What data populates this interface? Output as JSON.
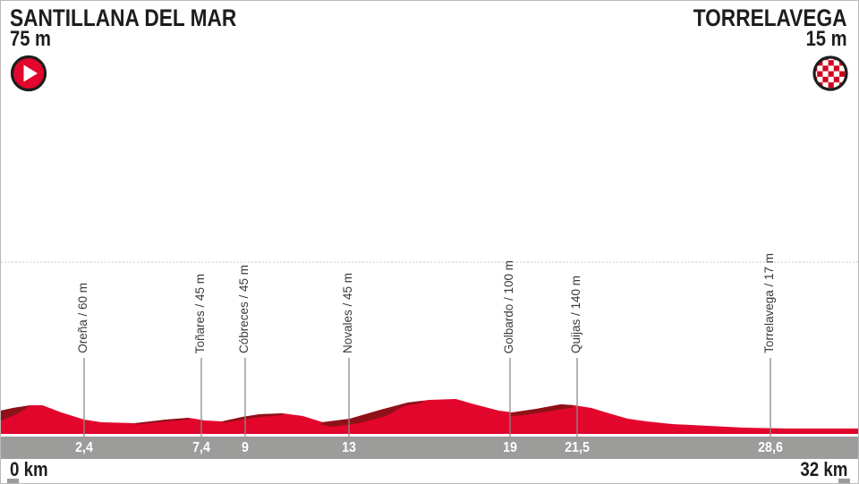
{
  "header": {
    "start": {
      "name": "SANTILLANA DEL MAR",
      "elevation": "75 m"
    },
    "finish": {
      "name": "TORRELAVEGA",
      "elevation": "15 m"
    }
  },
  "axis": {
    "start_label": "0 km",
    "end_label": "32 km"
  },
  "colors": {
    "red": "#e2062c",
    "dark_red": "#8e1118",
    "gray_bar": "#9c9c9b",
    "tick": "#8a8a8a",
    "heading_text": "#1d1d1b",
    "label_text": "#3a3a39",
    "km_text": "#ffffff"
  },
  "icons": {
    "start": "time-trial-start-play-icon",
    "finish": "checkered-finish-icon"
  },
  "chart_data": {
    "type": "area",
    "x_unit": "km",
    "x_range": [
      0,
      32
    ],
    "start": {
      "name": "Santillana del Mar",
      "elevation_m": 75,
      "km": 0
    },
    "finish": {
      "name": "Torrelavega",
      "elevation_m": 15,
      "km": 32
    },
    "waypoints": [
      {
        "name": "Oreña",
        "elevation_m": 60,
        "km_label": "2,4",
        "pos": 0.0969
      },
      {
        "name": "Toñares",
        "elevation_m": 45,
        "km_label": "7,4",
        "pos": 0.2333
      },
      {
        "name": "Cóbreces",
        "elevation_m": 45,
        "km_label": "9",
        "pos": 0.2844
      },
      {
        "name": "Novales",
        "elevation_m": 45,
        "km_label": "13",
        "pos": 0.4052
      },
      {
        "name": "Golbardo",
        "elevation_m": 100,
        "km_label": "19",
        "pos": 0.5927
      },
      {
        "name": "Quijas",
        "elevation_m": 140,
        "km_label": "21,5",
        "pos": 0.6708
      },
      {
        "name": "Torrelavega",
        "elevation_m": 17,
        "km_label": "28,6",
        "pos": 0.8958
      }
    ],
    "profile_km_m": [
      [
        0,
        78
      ],
      [
        0.45,
        87
      ],
      [
        1.1,
        96
      ],
      [
        1.55,
        96
      ],
      [
        2.25,
        72
      ],
      [
        3.1,
        48
      ],
      [
        3.75,
        39
      ],
      [
        5,
        36
      ],
      [
        6.15,
        48
      ],
      [
        7,
        54
      ],
      [
        7.6,
        45
      ],
      [
        8.25,
        42
      ],
      [
        9,
        57
      ],
      [
        9.65,
        66
      ],
      [
        10.5,
        69
      ],
      [
        11.25,
        60
      ],
      [
        12.1,
        36
      ],
      [
        13,
        51
      ],
      [
        14.15,
        81
      ],
      [
        15.15,
        105
      ],
      [
        15.95,
        114
      ],
      [
        16.95,
        117
      ],
      [
        17.65,
        99
      ],
      [
        18.55,
        78
      ],
      [
        19.05,
        72
      ],
      [
        19.95,
        84
      ],
      [
        20.85,
        99
      ],
      [
        21.35,
        96
      ],
      [
        22,
        87
      ],
      [
        22.65,
        69
      ],
      [
        23.35,
        51
      ],
      [
        24.05,
        42
      ],
      [
        25,
        33
      ],
      [
        26.35,
        27
      ],
      [
        27.65,
        21
      ],
      [
        29.35,
        18
      ],
      [
        32,
        18
      ]
    ],
    "gradient_shadows_km_m": [
      [
        [
          0,
          78
        ],
        [
          0.45,
          87
        ],
        [
          1.1,
          96
        ],
        [
          0.67,
          69
        ],
        [
          0.27,
          54
        ],
        [
          0,
          45
        ]
      ],
      [
        [
          5,
          36
        ],
        [
          6.15,
          48
        ],
        [
          7,
          54
        ],
        [
          7,
          48
        ],
        [
          6.15,
          42
        ],
        [
          5,
          31
        ]
      ],
      [
        [
          8.25,
          42
        ],
        [
          9,
          57
        ],
        [
          9.65,
          66
        ],
        [
          10.5,
          69
        ],
        [
          10.5,
          63
        ],
        [
          9.65,
          57
        ],
        [
          9,
          48
        ],
        [
          8.25,
          37
        ]
      ],
      [
        [
          11.95,
          39
        ],
        [
          13,
          51
        ],
        [
          14.15,
          81
        ],
        [
          15.15,
          105
        ],
        [
          15.7,
          111
        ],
        [
          15.7,
          104
        ],
        [
          15,
          93
        ],
        [
          14.35,
          60
        ],
        [
          13.35,
          36
        ],
        [
          12.35,
          24
        ],
        [
          11.95,
          30
        ]
      ],
      [
        [
          19.05,
          72
        ],
        [
          19.95,
          84
        ],
        [
          20.85,
          99
        ],
        [
          21.3,
          97
        ],
        [
          21.3,
          88
        ],
        [
          20.35,
          75
        ],
        [
          19.5,
          63
        ],
        [
          18.95,
          60
        ]
      ]
    ]
  }
}
